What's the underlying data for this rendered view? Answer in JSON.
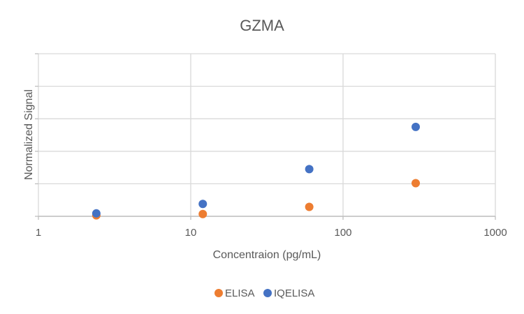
{
  "chart_data": {
    "type": "scatter",
    "title": "GZMA",
    "xlabel": "Concentraion (pg/mL)",
    "ylabel": "Normalized Signal",
    "xscale": "log",
    "xlim": [
      1,
      1000
    ],
    "ylim": [
      0,
      5
    ],
    "xticks": [
      1,
      10,
      100,
      1000
    ],
    "xtick_labels": [
      "1",
      "10",
      "100",
      "1000"
    ],
    "y_gridlines": [
      0,
      1,
      2,
      3,
      4,
      5
    ],
    "grid": true,
    "legend_position": "bottom",
    "series": [
      {
        "name": "ELISA",
        "color": "#ED7D31",
        "points": [
          {
            "x": 2.4,
            "y": 0.03
          },
          {
            "x": 12,
            "y": 0.07
          },
          {
            "x": 60,
            "y": 0.29
          },
          {
            "x": 300,
            "y": 1.02
          }
        ]
      },
      {
        "name": "IQELISA",
        "color": "#4472C4",
        "points": [
          {
            "x": 2.4,
            "y": 0.09
          },
          {
            "x": 12,
            "y": 0.38
          },
          {
            "x": 60,
            "y": 1.45
          },
          {
            "x": 300,
            "y": 2.75
          }
        ]
      }
    ]
  }
}
